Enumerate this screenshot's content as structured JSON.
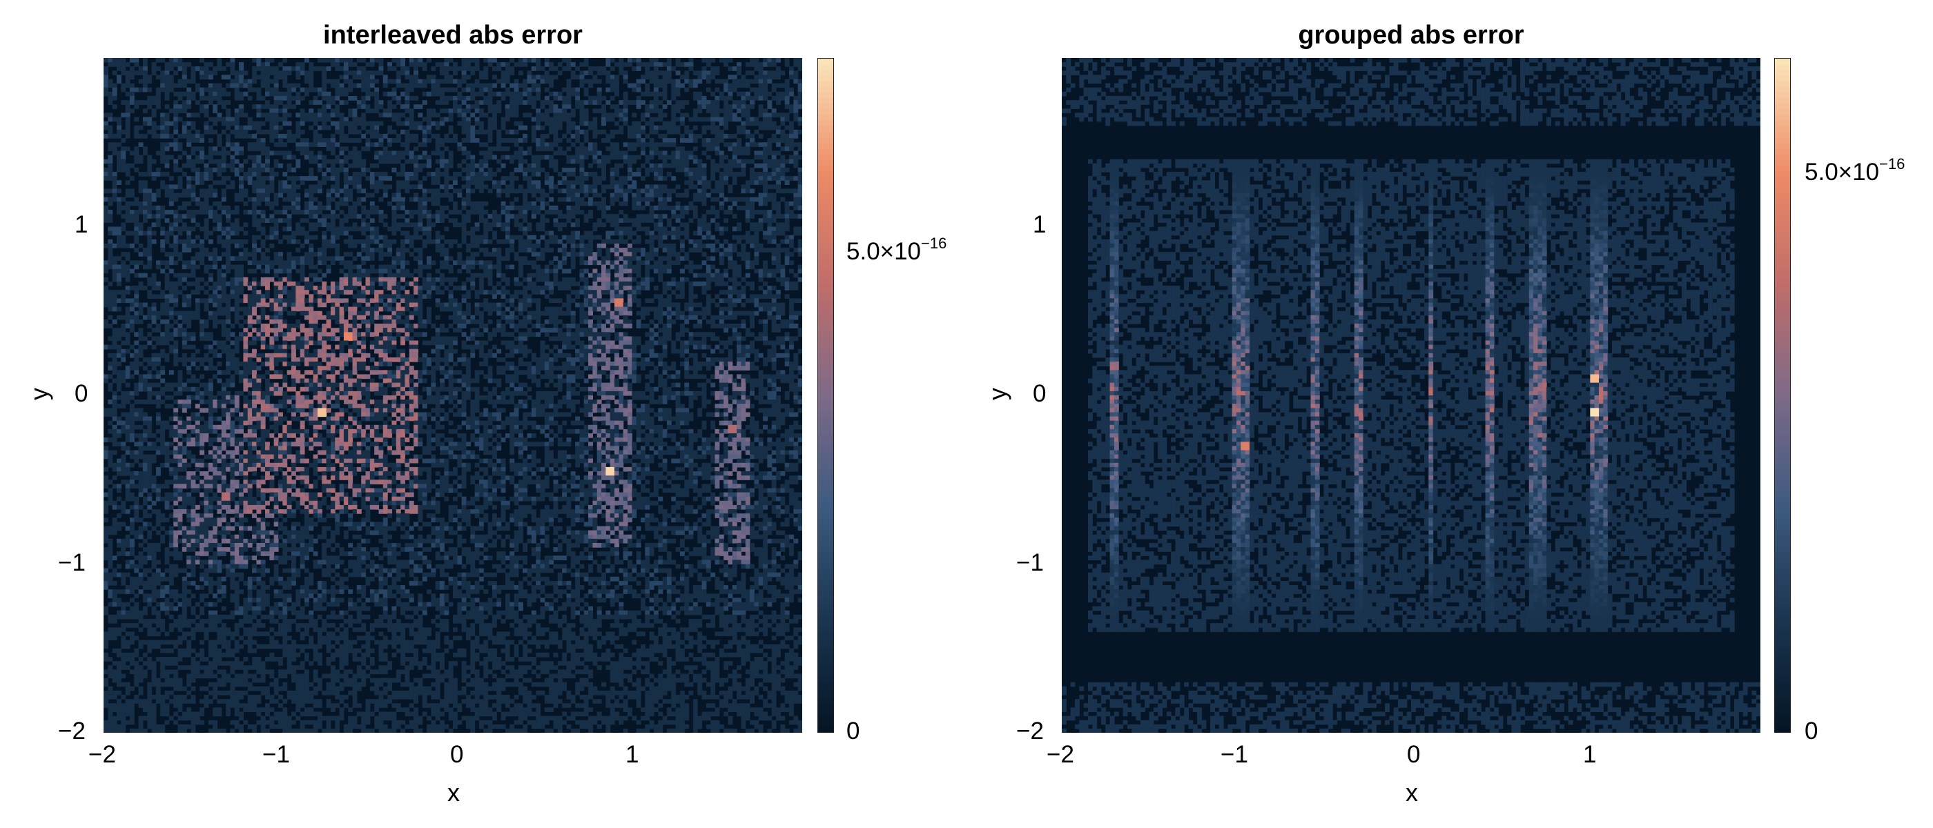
{
  "chart_data": [
    {
      "type": "heatmap",
      "title": "interleaved abs error",
      "xlabel": "x",
      "ylabel": "y",
      "xlim": [
        -2,
        2
      ],
      "ylim": [
        -2,
        2
      ],
      "x_ticks": [
        "−2",
        "−1",
        "0",
        "1"
      ],
      "y_ticks": [
        "−2",
        "−1",
        "0",
        "1"
      ],
      "colorbar": {
        "min": 0,
        "max": 8e-16,
        "tick_values": [
          0,
          5e-16
        ],
        "tick_labels": [
          "0",
          "5.0×10",
          "−16"
        ]
      },
      "colormap": [
        "#051526",
        "#1b3651",
        "#3d5a80",
        "#7e6a88",
        "#c06d6a",
        "#ee8a66",
        "#fbe3b8"
      ],
      "grid_size": 160,
      "hotspots": [
        {
          "x": -0.75,
          "y": -0.1,
          "value": 7.5e-16
        },
        {
          "x": -0.6,
          "y": 0.35,
          "value": 6.5e-16
        },
        {
          "x": 0.9,
          "y": -0.45,
          "value": 7.8e-16
        },
        {
          "x": 0.95,
          "y": 0.55,
          "value": 6e-16
        },
        {
          "x": 1.6,
          "y": -0.2,
          "value": 5e-16
        },
        {
          "x": -1.3,
          "y": -0.6,
          "value": 5e-16
        }
      ]
    },
    {
      "type": "heatmap",
      "title": "grouped abs error",
      "xlabel": "x",
      "ylabel": "y",
      "xlim": [
        -2,
        2
      ],
      "ylim": [
        -2,
        2
      ],
      "x_ticks": [
        "−2",
        "−1",
        "0",
        "1"
      ],
      "y_ticks": [
        "−2",
        "−1",
        "0",
        "1"
      ],
      "colorbar": {
        "min": 0,
        "max": 6.5e-16,
        "tick_values": [
          0,
          5e-16
        ],
        "tick_labels": [
          "0",
          "5.0×10",
          "−16"
        ]
      },
      "colormap": [
        "#051526",
        "#1b3651",
        "#3d5a80",
        "#7e6a88",
        "#c06d6a",
        "#ee8a66",
        "#fbe3b8"
      ],
      "grid_size": 160,
      "stripes_x": [
        -1.7,
        -1.0,
        -0.95,
        -0.55,
        -0.3,
        0.1,
        0.45,
        0.7,
        0.75,
        1.05,
        1.1
      ],
      "hotspots": [
        {
          "x": 1.05,
          "y": -0.1,
          "value": 6.5e-16
        },
        {
          "x": -0.95,
          "y": -0.3,
          "value": 5e-16
        },
        {
          "x": 1.05,
          "y": 0.1,
          "value": 6e-16
        }
      ]
    }
  ]
}
